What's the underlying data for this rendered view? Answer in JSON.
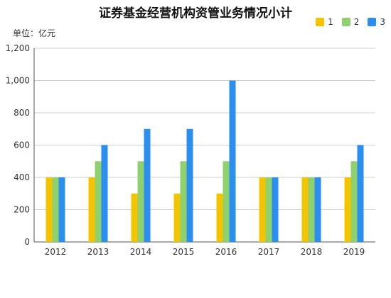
{
  "chart_data": {
    "type": "bar",
    "title": "证券基金经营机构资管业务情况小计",
    "unit_label": "单位：亿元",
    "categories": [
      "2012",
      "2013",
      "2014",
      "2015",
      "2016",
      "2017",
      "2018",
      "2019"
    ],
    "series": [
      {
        "name": "1",
        "color": "#f5c400",
        "values": [
          400,
          400,
          300,
          300,
          300,
          400,
          400,
          400
        ]
      },
      {
        "name": "2",
        "color": "#8fd16f",
        "values": [
          400,
          500,
          500,
          500,
          500,
          400,
          400,
          500
        ]
      },
      {
        "name": "3",
        "color": "#2b8ff0",
        "values": [
          400,
          600,
          700,
          700,
          1000,
          400,
          400,
          600
        ]
      }
    ],
    "ylim": [
      0,
      1200
    ],
    "yticks": [
      0,
      200,
      400,
      600,
      800,
      1000,
      1200
    ],
    "ytick_labels": [
      "0",
      "200",
      "400",
      "600",
      "800",
      "1,000",
      "1,200"
    ],
    "grid": true,
    "legend_position": "top-right"
  }
}
